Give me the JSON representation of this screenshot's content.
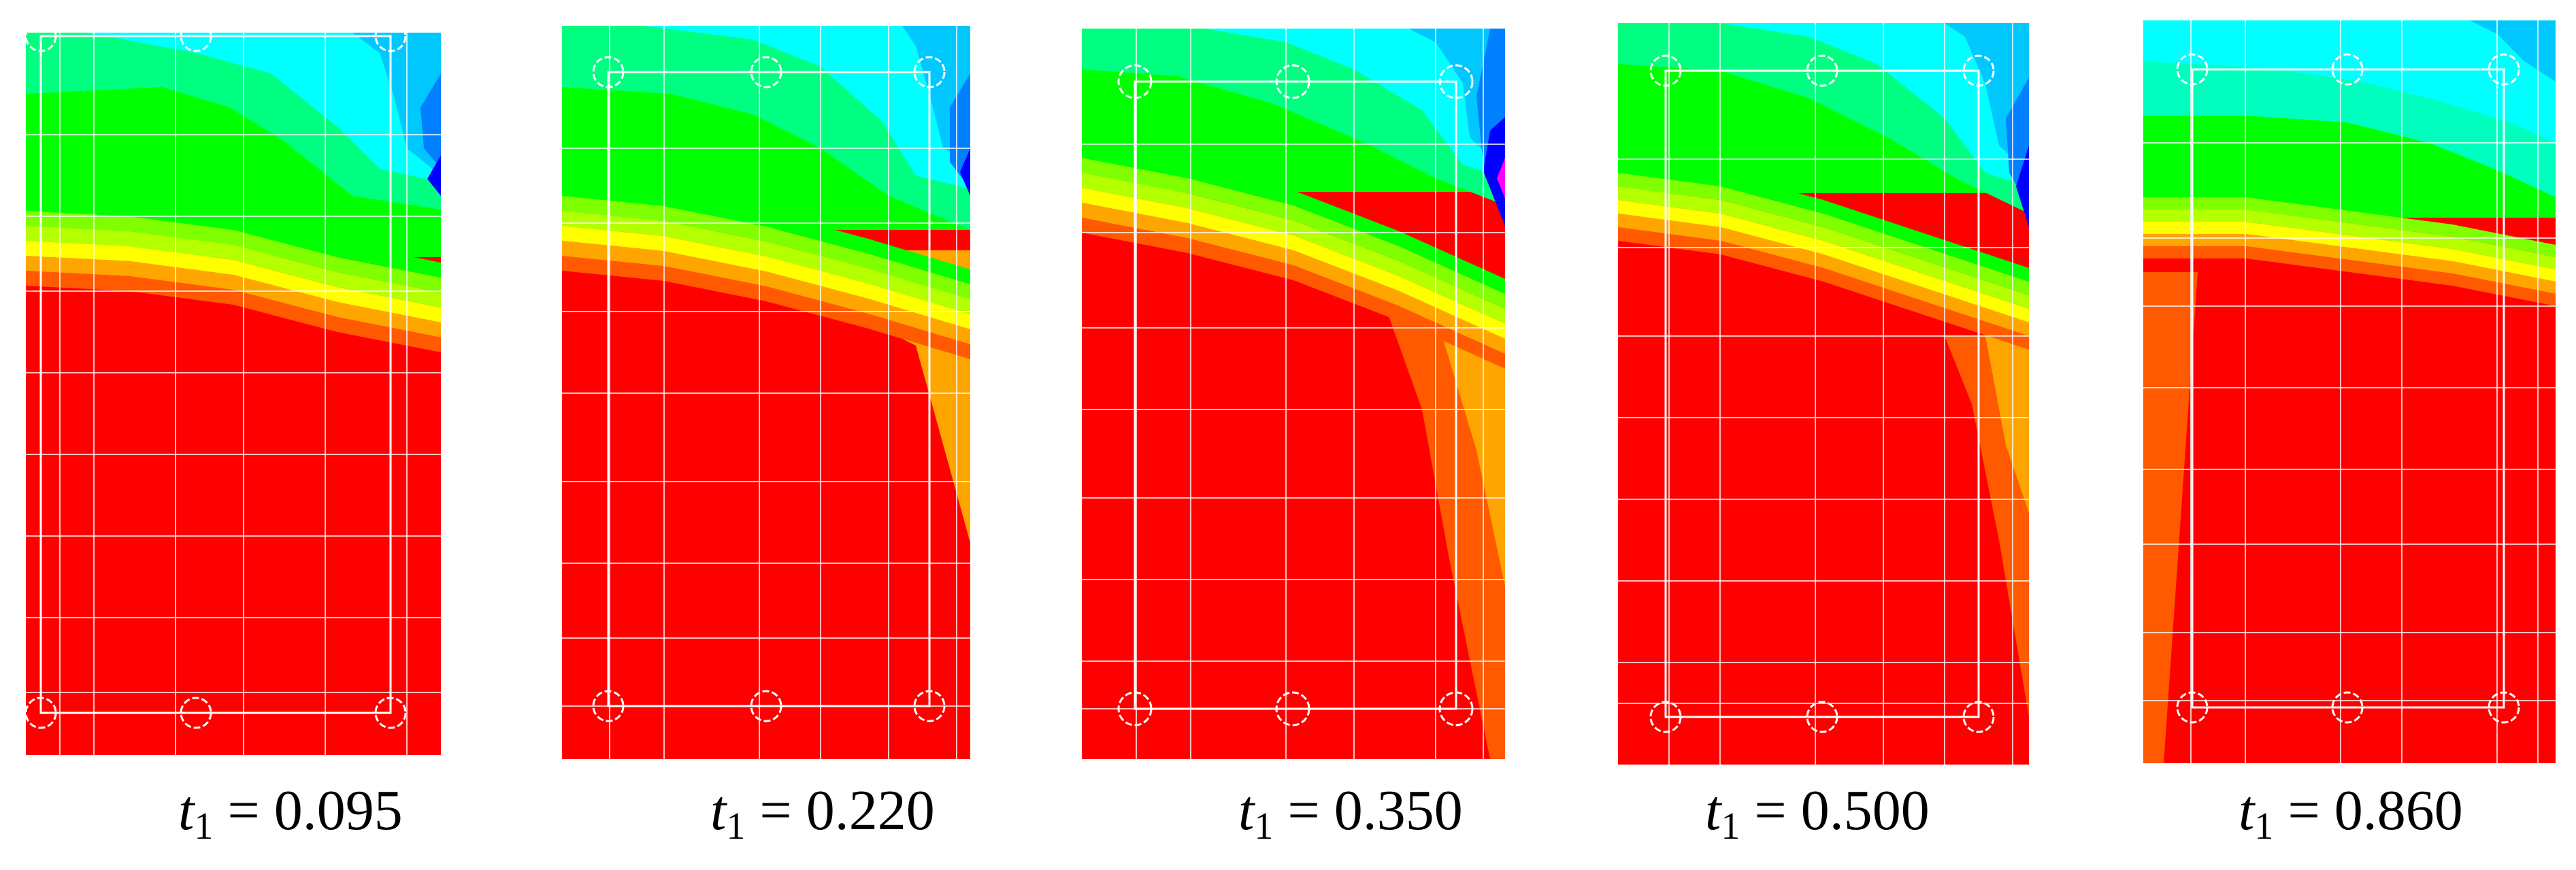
{
  "panels": [
    {
      "symbol": "t",
      "subscript": "1",
      "equals": "=",
      "value": "0.095",
      "ratio": 0.095
    },
    {
      "symbol": "t",
      "subscript": "1",
      "equals": "=",
      "value": "0.220",
      "ratio": 0.22
    },
    {
      "symbol": "t",
      "subscript": "1",
      "equals": "=",
      "value": "0.350",
      "ratio": 0.35
    },
    {
      "symbol": "t",
      "subscript": "1",
      "equals": "=",
      "value": "0.500",
      "ratio": 0.5
    },
    {
      "symbol": "t",
      "subscript": "1",
      "equals": "=",
      "value": "0.860",
      "ratio": 0.86
    }
  ],
  "colors": {
    "red": "#ff0000",
    "orange_red": "#ff5a00",
    "orange": "#ffa500",
    "yellow": "#ffff00",
    "yellow_green": "#b4ff00",
    "light_green": "#80ff00",
    "green": "#00ff00",
    "spring_green": "#00ff80",
    "aqua_green": "#00ffbe",
    "cyan": "#00ffff",
    "sky_blue": "#00c8ff",
    "azure": "#0080ff",
    "blue": "#0000ff",
    "magenta": "#ff00ff",
    "grid": "#ffffff"
  }
}
